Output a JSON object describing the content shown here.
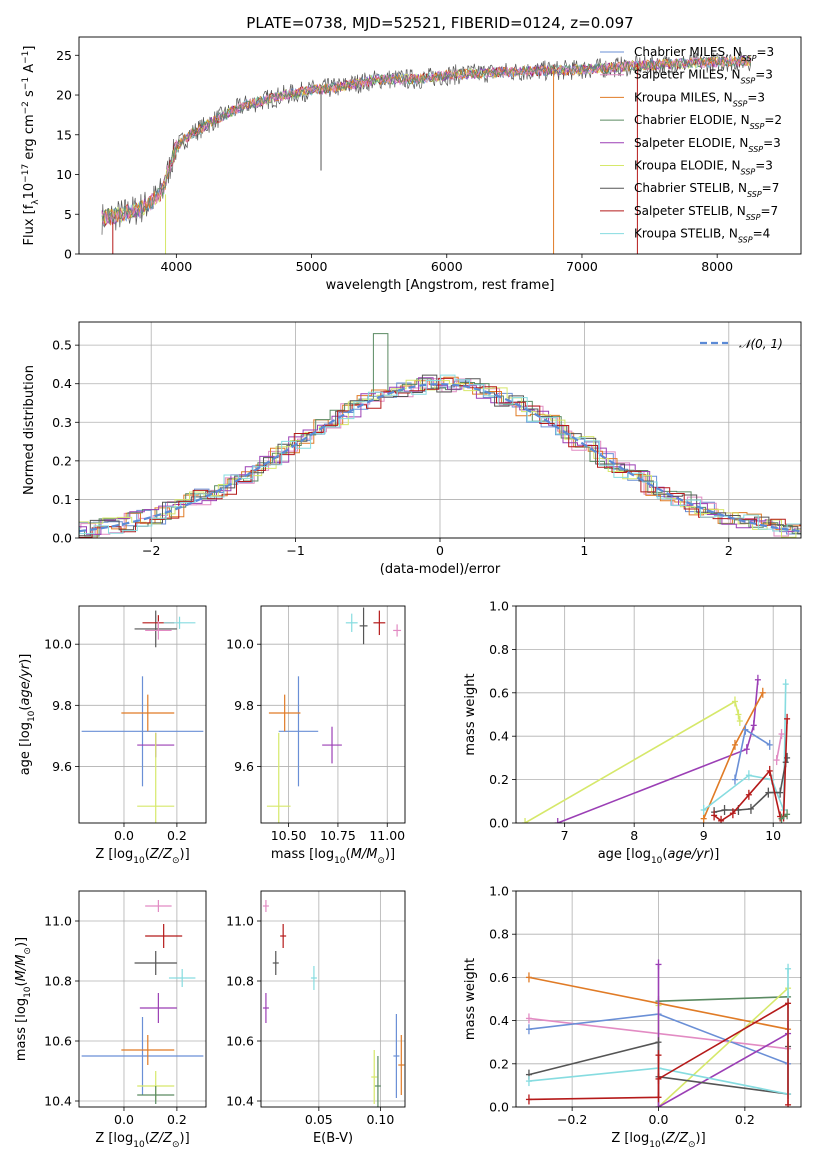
{
  "figure": {
    "title": "PLATE=0738, MJD=52521, FIBERID=0124, z=0.097"
  },
  "colors": {
    "Chabrier MILES": "#6a8fd6",
    "Salpeter MILES": "#e28bc3",
    "Kroupa MILES": "#e07b26",
    "Chabrier ELODIE": "#5a8a62",
    "Salpeter ELODIE": "#9b3fb5",
    "Kroupa ELODIE": "#d6e86a",
    "Chabrier STELIB": "#555555",
    "Salpeter STELIB": "#b51a1a",
    "Kroupa STELIB": "#86dce0"
  },
  "chart_data": [
    {
      "id": "spectrum",
      "type": "line",
      "xlabel": "wavelength [Angstrom, rest frame]",
      "ylabel": "Flux [f_λ10^-17 erg cm^-2 s^-1 A^-1]",
      "xlim": [
        3280,
        8620
      ],
      "ylim": [
        0,
        27.3
      ],
      "xticks": [
        4000,
        5000,
        6000,
        7000,
        8000
      ],
      "yticks": [
        0,
        5,
        10,
        15,
        20,
        25
      ],
      "legend_position": "right",
      "legend": [
        {
          "name": "Chabrier MILES",
          "sub": "3"
        },
        {
          "name": "Salpeter MILES",
          "sub": "3"
        },
        {
          "name": "Kroupa MILES",
          "sub": "3"
        },
        {
          "name": "Chabrier ELODIE",
          "sub": "2"
        },
        {
          "name": "Salpeter ELODIE",
          "sub": "3"
        },
        {
          "name": "Kroupa ELODIE",
          "sub": "3"
        },
        {
          "name": "Chabrier STELIB",
          "sub": "7"
        },
        {
          "name": "Salpeter STELIB",
          "sub": "7"
        },
        {
          "name": "Kroupa STELIB",
          "sub": "4"
        }
      ],
      "continuum": {
        "x": [
          3450,
          3600,
          3700,
          3800,
          3900,
          3950,
          4000,
          4100,
          4300,
          4500,
          4800,
          5000,
          5200,
          5500,
          5800,
          6000,
          6300,
          6600,
          7000,
          7400,
          7800,
          8200
        ],
        "y": [
          4.5,
          5.0,
          5.5,
          6.3,
          8.0,
          11.0,
          13.5,
          15.0,
          17.0,
          18.7,
          20.0,
          20.6,
          21.0,
          22.0,
          22.0,
          22.5,
          22.8,
          23.0,
          23.2,
          23.7,
          24.0,
          24.3
        ]
      },
      "spikes": [
        {
          "x": 3530,
          "from": 4.0,
          "to": 0,
          "series": "Salpeter STELIB"
        },
        {
          "x": 3920,
          "from": 7.5,
          "to": 0,
          "series": "Kroupa ELODIE"
        },
        {
          "x": 5070,
          "from": 20.5,
          "to": 10.5,
          "series": "Chabrier STELIB"
        },
        {
          "x": 6790,
          "from": 23.0,
          "to": 0,
          "series": "Kroupa MILES"
        },
        {
          "x": 7410,
          "from": 24.0,
          "to": 0,
          "series": "Salpeter STELIB"
        }
      ]
    },
    {
      "id": "residuals",
      "type": "line",
      "xlabel": "(data-model)/error",
      "ylabel": "Normed distribution",
      "xlim": [
        -2.5,
        2.5
      ],
      "ylim": [
        0,
        0.56
      ],
      "xticks": [
        -2,
        -1,
        0,
        1,
        2
      ],
      "yticks": [
        0.0,
        0.1,
        0.2,
        0.3,
        0.4,
        0.5
      ],
      "legend": [
        "𝒩(0, 1)"
      ],
      "legend_position": "top-right",
      "reference_curve": {
        "name": "𝒩(0, 1)",
        "mu": 0,
        "sigma": 1
      },
      "spike": {
        "x": -0.45,
        "value": 0.53,
        "series": "Chabrier ELODIE"
      }
    },
    {
      "id": "age_vs_Z",
      "type": "scatter",
      "xlabel": "Z [log10(Z/Z⊙)]",
      "ylabel": "age  [log10(age/yr)]",
      "xlim": [
        -0.17,
        0.31
      ],
      "ylim": [
        9.415,
        10.125
      ],
      "xticks": [
        0.0,
        0.2
      ],
      "yticks": [
        9.6,
        9.8,
        10.0
      ],
      "points": [
        {
          "series": "Chabrier MILES",
          "x": 0.07,
          "xerr": 0.23,
          "y": 9.715,
          "yerr": 0.18
        },
        {
          "series": "Kroupa MILES",
          "x": 0.09,
          "xerr": 0.1,
          "y": 9.775,
          "yerr": 0.06
        },
        {
          "series": "Salpeter ELODIE",
          "x": 0.12,
          "xerr": 0.07,
          "y": 9.67,
          "yerr": 0.04
        },
        {
          "series": "Kroupa ELODIE",
          "x": 0.12,
          "xerr": 0.07,
          "y": 9.47,
          "yerr": 0.24
        },
        {
          "series": "Chabrier STELIB",
          "x": 0.12,
          "xerr": 0.08,
          "y": 10.05,
          "yerr": 0.06
        },
        {
          "series": "Salpeter STELIB",
          "x": 0.13,
          "xerr": 0.06,
          "y": 10.07,
          "yerr": 0.025
        },
        {
          "series": "Salpeter MILES",
          "x": 0.13,
          "xerr": 0.05,
          "y": 10.045,
          "yerr": 0.03
        },
        {
          "series": "Kroupa STELIB",
          "x": 0.21,
          "xerr": 0.06,
          "y": 10.07,
          "yerr": 0.02
        }
      ]
    },
    {
      "id": "age_vs_mass",
      "type": "scatter",
      "xlabel": "mass [log10(M/M⊙)]",
      "ylabel": "",
      "xlim": [
        10.36,
        11.09
      ],
      "ylim": [
        9.415,
        10.125
      ],
      "xticks": [
        10.5,
        10.75,
        11.0
      ],
      "yticks": [
        9.6,
        9.8,
        10.0
      ],
      "points": [
        {
          "series": "Chabrier MILES",
          "x": 10.55,
          "xerr": 0.1,
          "y": 9.715,
          "yerr": 0.18
        },
        {
          "series": "Kroupa MILES",
          "x": 10.48,
          "xerr": 0.08,
          "y": 9.775,
          "yerr": 0.06
        },
        {
          "series": "Salpeter ELODIE",
          "x": 10.72,
          "xerr": 0.05,
          "y": 9.67,
          "yerr": 0.06
        },
        {
          "series": "Kroupa ELODIE",
          "x": 10.45,
          "xerr": 0.06,
          "y": 9.47,
          "yerr": 0.24
        },
        {
          "series": "Chabrier STELIB",
          "x": 10.88,
          "xerr": 0.02,
          "y": 10.06,
          "yerr": 0.06
        },
        {
          "series": "Salpeter STELIB",
          "x": 10.96,
          "xerr": 0.03,
          "y": 10.07,
          "yerr": 0.04
        },
        {
          "series": "Salpeter MILES",
          "x": 11.05,
          "xerr": 0.02,
          "y": 10.045,
          "yerr": 0.02
        },
        {
          "series": "Kroupa STELIB",
          "x": 10.82,
          "xerr": 0.03,
          "y": 10.07,
          "yerr": 0.03
        }
      ]
    },
    {
      "id": "weight_vs_age",
      "type": "line",
      "xlabel": "age  [log10(age/yr)]",
      "ylabel": "mass weight",
      "xlim": [
        6.3,
        10.4
      ],
      "ylim": [
        0,
        1.0
      ],
      "xticks": [
        7,
        8,
        9,
        10
      ],
      "yticks": [
        0.0,
        0.2,
        0.4,
        0.6,
        0.8,
        1.0
      ],
      "series": [
        {
          "name": "Kroupa ELODIE",
          "x": [
            6.43,
            9.45,
            9.5,
            9.52
          ],
          "y": [
            0.0,
            0.56,
            0.5,
            0.47
          ]
        },
        {
          "name": "Salpeter ELODIE",
          "x": [
            6.9,
            9.62,
            9.72,
            9.78
          ],
          "y": [
            0.0,
            0.34,
            0.45,
            0.66
          ]
        },
        {
          "name": "Kroupa MILES",
          "x": [
            9.0,
            9.45,
            9.85
          ],
          "y": [
            0.02,
            0.36,
            0.6
          ]
        },
        {
          "name": "Kroupa STELIB",
          "x": [
            9.0,
            9.65,
            9.98,
            10.15,
            10.18
          ],
          "y": [
            0.06,
            0.22,
            0.2,
            0.06,
            0.64
          ]
        },
        {
          "name": "Chabrier MILES",
          "x": [
            9.45,
            9.6,
            9.95
          ],
          "y": [
            0.2,
            0.43,
            0.36
          ]
        },
        {
          "name": "Salpeter MILES",
          "x": [
            10.05,
            10.12
          ],
          "y": [
            0.29,
            0.41
          ]
        },
        {
          "name": "Chabrier STELIB",
          "x": [
            9.15,
            9.3,
            9.5,
            9.68,
            9.93,
            10.1,
            10.18,
            10.2
          ],
          "y": [
            0.05,
            0.06,
            0.06,
            0.065,
            0.14,
            0.14,
            0.28,
            0.3
          ]
        },
        {
          "name": "Salpeter STELIB",
          "x": [
            9.15,
            9.25,
            9.42,
            9.65,
            9.95,
            10.1,
            10.15,
            10.2
          ],
          "y": [
            0.035,
            0.01,
            0.045,
            0.13,
            0.24,
            0.03,
            0.03,
            0.48
          ]
        },
        {
          "name": "Chabrier ELODIE",
          "x": [
            10.12,
            10.2
          ],
          "y": [
            0.02,
            0.04
          ]
        }
      ]
    },
    {
      "id": "mass_vs_Z",
      "type": "scatter",
      "xlabel": "Z [log10(Z/Z⊙)]",
      "ylabel": "mass [log10(M/M⊙)]",
      "xlim": [
        -0.17,
        0.31
      ],
      "ylim": [
        10.38,
        11.1
      ],
      "xticks": [
        0.0,
        0.2
      ],
      "yticks": [
        10.4,
        10.6,
        10.8,
        11.0
      ],
      "points": [
        {
          "series": "Chabrier MILES",
          "x": 0.07,
          "xerr": 0.23,
          "y": 10.55,
          "yerr": 0.13
        },
        {
          "series": "Kroupa MILES",
          "x": 0.09,
          "xerr": 0.1,
          "y": 10.57,
          "yerr": 0.05
        },
        {
          "series": "Kroupa ELODIE",
          "x": 0.12,
          "xerr": 0.07,
          "y": 10.45,
          "yerr": 0.05
        },
        {
          "series": "Chabrier ELODIE",
          "x": 0.12,
          "xerr": 0.07,
          "y": 10.42,
          "yerr": 0.03
        },
        {
          "series": "Salpeter ELODIE",
          "x": 0.13,
          "xerr": 0.07,
          "y": 10.71,
          "yerr": 0.05
        },
        {
          "series": "Chabrier STELIB",
          "x": 0.12,
          "xerr": 0.08,
          "y": 10.86,
          "yerr": 0.04
        },
        {
          "series": "Kroupa STELIB",
          "x": 0.22,
          "xerr": 0.05,
          "y": 10.81,
          "yerr": 0.03
        },
        {
          "series": "Salpeter STELIB",
          "x": 0.15,
          "xerr": 0.07,
          "y": 10.95,
          "yerr": 0.04
        },
        {
          "series": "Salpeter MILES",
          "x": 0.13,
          "xerr": 0.05,
          "y": 11.05,
          "yerr": 0.02
        }
      ]
    },
    {
      "id": "mass_vs_EBV",
      "type": "scatter",
      "xlabel": "E(B-V)",
      "ylabel": "",
      "xlim": [
        0.003,
        0.12
      ],
      "ylim": [
        10.38,
        11.1
      ],
      "xticks": [
        0.05,
        0.1
      ],
      "yticks": [
        10.4,
        10.6,
        10.8,
        11.0
      ],
      "points": [
        {
          "series": "Salpeter MILES",
          "x": 0.007,
          "y": 11.05,
          "yerr": 0.02
        },
        {
          "series": "Salpeter STELIB",
          "x": 0.021,
          "y": 10.95,
          "yerr": 0.04
        },
        {
          "series": "Chabrier STELIB",
          "x": 0.015,
          "y": 10.86,
          "yerr": 0.04
        },
        {
          "series": "Kroupa STELIB",
          "x": 0.046,
          "y": 10.81,
          "yerr": 0.04
        },
        {
          "series": "Salpeter ELODIE",
          "x": 0.007,
          "y": 10.71,
          "yerr": 0.05
        },
        {
          "series": "Chabrier MILES",
          "x": 0.113,
          "y": 10.55,
          "yerr": 0.14
        },
        {
          "series": "Kroupa MILES",
          "x": 0.117,
          "y": 10.52,
          "yerr": 0.1
        },
        {
          "series": "Kroupa ELODIE",
          "x": 0.095,
          "y": 10.48,
          "yerr": 0.09
        },
        {
          "series": "Chabrier ELODIE",
          "x": 0.098,
          "y": 10.45,
          "yerr": 0.1
        }
      ]
    },
    {
      "id": "weight_vs_Z",
      "type": "line",
      "xlabel": "Z [log10(Z/Z⊙)]",
      "ylabel": "mass weight",
      "xlim": [
        -0.33,
        0.33
      ],
      "ylim": [
        0,
        1.0
      ],
      "xticks": [
        -0.2,
        0.0,
        0.2
      ],
      "yticks": [
        0.0,
        0.2,
        0.4,
        0.6,
        0.8,
        1.0
      ],
      "series": [
        {
          "name": "Kroupa MILES",
          "x": [
            -0.3,
            0.0,
            0.3
          ],
          "y": [
            0.6,
            0.48,
            0.36
          ]
        },
        {
          "name": "Salpeter MILES",
          "x": [
            -0.3,
            0.3
          ],
          "y": [
            0.41,
            0.27
          ]
        },
        {
          "name": "Chabrier MILES",
          "x": [
            -0.3,
            0.0,
            0.3
          ],
          "y": [
            0.36,
            0.43,
            0.2
          ]
        },
        {
          "name": "Chabrier ELODIE",
          "x": [
            0.0,
            0.3
          ],
          "y": [
            0.49,
            0.51
          ]
        },
        {
          "name": "Kroupa ELODIE",
          "x": [
            0.0,
            0.0,
            0.3
          ],
          "y": [
            0.47,
            0.0,
            0.55
          ]
        },
        {
          "name": "Salpeter ELODIE",
          "x": [
            0.0,
            0.0,
            0.3
          ],
          "y": [
            0.66,
            0.0,
            0.34
          ]
        },
        {
          "name": "Chabrier STELIB",
          "x": [
            -0.3,
            0.0,
            0.0,
            0.3,
            0.3
          ],
          "y": [
            0.15,
            0.3,
            0.14,
            0.06,
            0.28
          ]
        },
        {
          "name": "Kroupa STELIB",
          "x": [
            -0.3,
            0.0,
            0.3,
            0.3
          ],
          "y": [
            0.12,
            0.18,
            0.06,
            0.64
          ]
        },
        {
          "name": "Salpeter STELIB",
          "x": [
            -0.3,
            0.0,
            0.0,
            0.0,
            0.3,
            0.3
          ],
          "y": [
            0.035,
            0.045,
            0.24,
            0.13,
            0.48,
            0.01
          ]
        }
      ]
    }
  ]
}
